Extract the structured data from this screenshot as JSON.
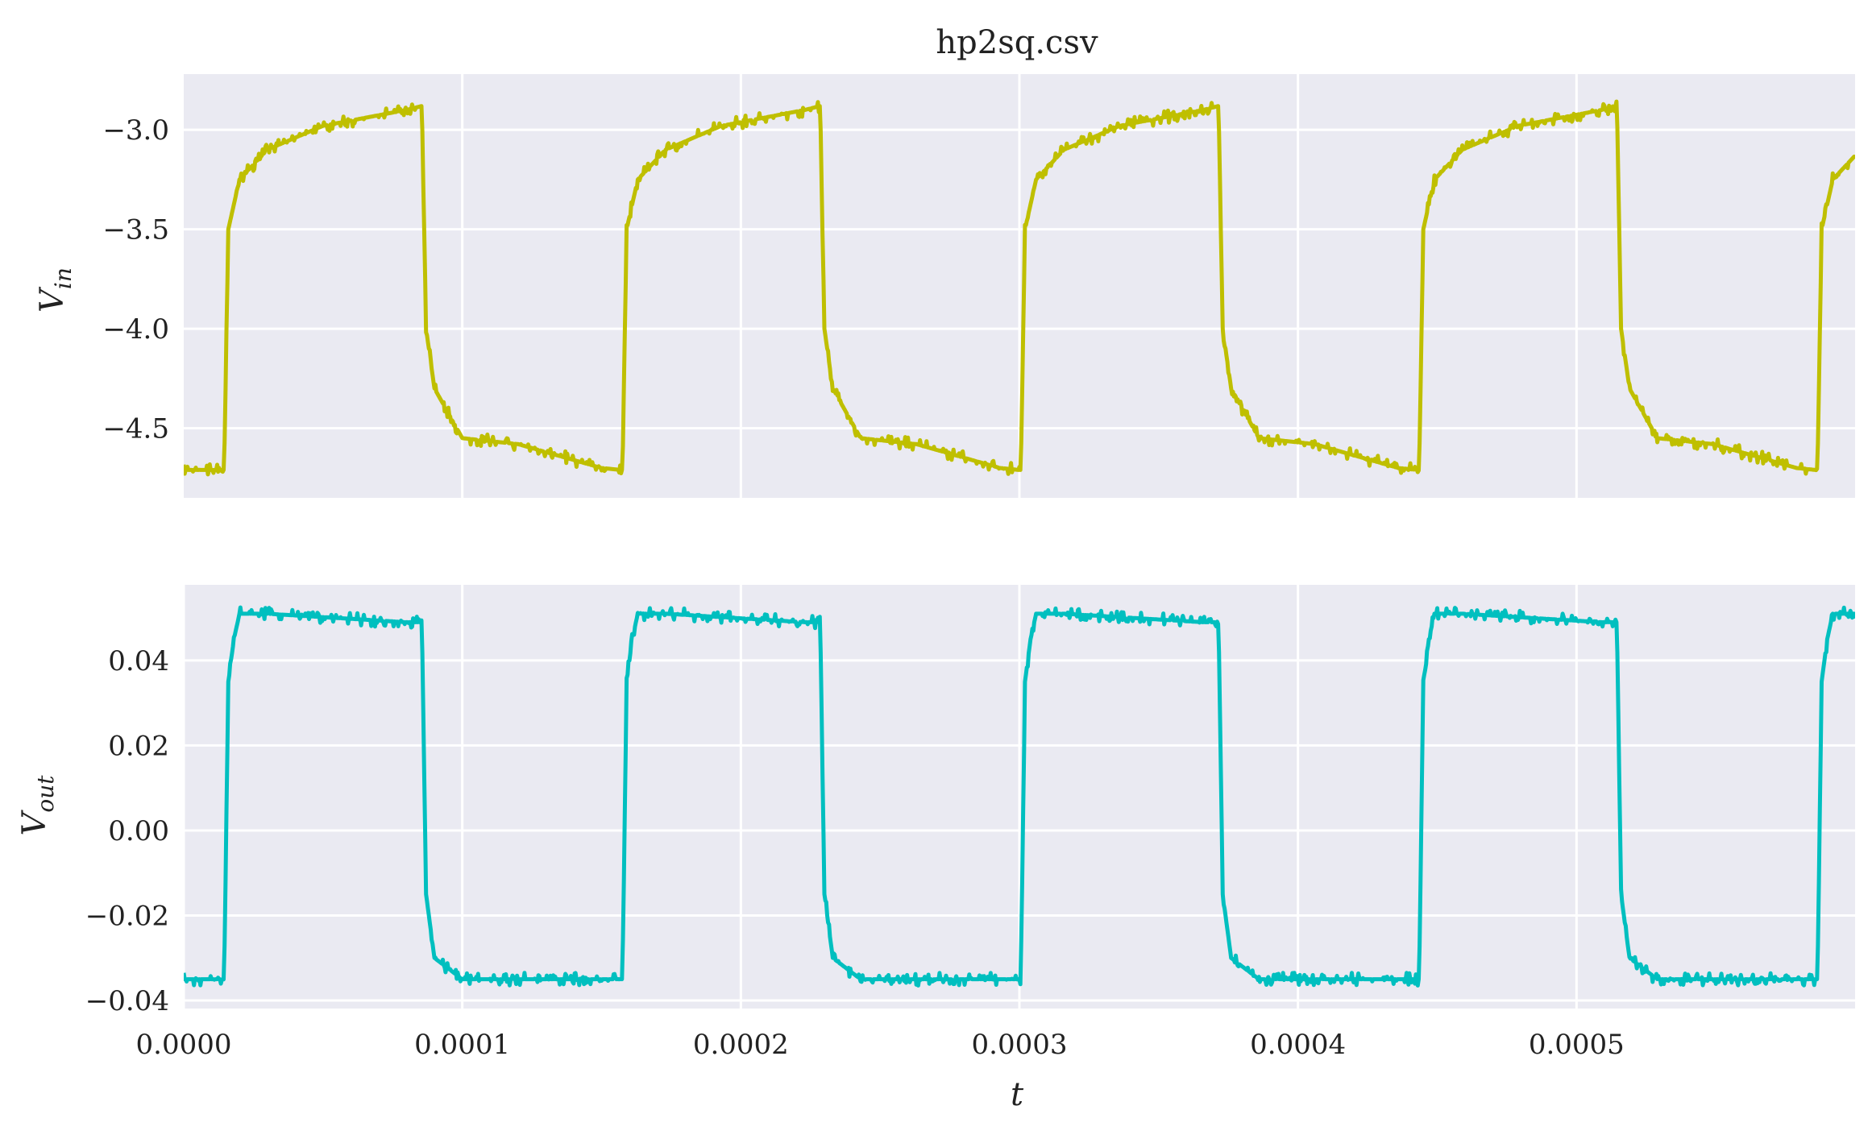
{
  "chart_data": [
    {
      "type": "line",
      "title": "hp2sq.csv",
      "ylabel_main": "V",
      "ylabel_sub": "in",
      "xlim": [
        0,
        0.0006
      ],
      "ylim": [
        -4.85,
        -2.72
      ],
      "yticks": [
        -4.5,
        -4.0,
        -3.5,
        -3.0
      ],
      "ytick_labels": [
        "−4.5",
        "−4.0",
        "−3.5",
        "−3.0"
      ],
      "xticks": [
        0.0001,
        0.0002,
        0.0003,
        0.0004,
        0.0005
      ],
      "grid": true,
      "color": "#bfbf00",
      "series": [
        {
          "name": "",
          "period": 0.000143,
          "first_rise": 1.45e-05,
          "duty_high": 0.5,
          "low_level": -4.71,
          "high_level": -2.88,
          "settled_low": -4.55,
          "settled_high": -2.96,
          "x": [
            0,
            1.45e-05,
            1.6e-05,
            2e-05,
            3e-05,
            5e-05,
            8e-05,
            8.55e-05,
            8.7e-05,
            9e-05,
            0.0001,
            0.00012,
            0.00015,
            0.000157
          ],
          "y": [
            -4.71,
            -4.71,
            -3.5,
            -3.25,
            -3.1,
            -2.98,
            -2.9,
            -2.88,
            -4.0,
            -4.3,
            -4.55,
            -4.58,
            -4.7,
            -4.71
          ]
        }
      ]
    },
    {
      "type": "line",
      "ylabel_main": "V",
      "ylabel_sub": "out",
      "xlabel": "t",
      "xlim": [
        0,
        0.0006
      ],
      "ylim": [
        -0.0419,
        0.0578
      ],
      "yticks": [
        -0.04,
        -0.02,
        0.0,
        0.02,
        0.04
      ],
      "ytick_labels": [
        "−0.04",
        "−0.02",
        "0.00",
        "0.02",
        "0.04"
      ],
      "xticks": [
        0.0,
        0.0001,
        0.0002,
        0.0003,
        0.0004,
        0.0005
      ],
      "xtick_labels": [
        "0.0000",
        "0.0001",
        "0.0002",
        "0.0003",
        "0.0004",
        "0.0005"
      ],
      "grid": true,
      "color": "#00bfbf",
      "series": [
        {
          "name": "",
          "period": 0.000143,
          "first_rise": 1.45e-05,
          "low_level": -0.035,
          "high_level": 0.051,
          "x": [
            0,
            1.45e-05,
            1.6e-05,
            1.8e-05,
            2e-05,
            3e-05,
            8e-05,
            8.55e-05,
            8.7e-05,
            9e-05,
            0.0001,
            0.00015,
            0.000157
          ],
          "y": [
            -0.035,
            -0.035,
            0.035,
            0.045,
            0.051,
            0.051,
            0.049,
            0.049,
            -0.015,
            -0.03,
            -0.035,
            -0.035,
            -0.035
          ]
        }
      ]
    }
  ]
}
